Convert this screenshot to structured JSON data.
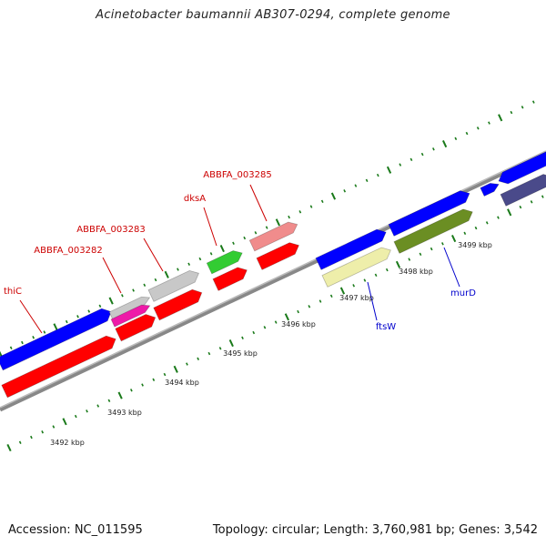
{
  "title": "Acinetobacter baumannii AB307-0294, complete genome",
  "footer": {
    "accession": "Accession: NC_011595",
    "summary": "Topology: circular; Length: 3,760,981 bp; Genes: 3,542"
  },
  "colors": {
    "gene_blue": "#0000ff",
    "gene_red": "#ff0000",
    "gene_gray": "#c8c8c8",
    "gene_magenta": "#ee1aa8",
    "gene_green": "#33cc33",
    "gene_pink": "#f08c8c",
    "gene_yellow": "#eeeeaa",
    "gene_olive": "#6b8e23",
    "gene_navy": "#4a4a8a",
    "tick_green": "#1a7a1a",
    "label_red": "#cc0000",
    "label_blue": "#0000cc"
  },
  "ticks": [
    "3492 kbp",
    "3493 kbp",
    "3494 kbp",
    "3495 kbp",
    "3496 kbp",
    "3497 kbp",
    "3498 kbp",
    "3499 kbp"
  ],
  "gene_labels": [
    {
      "name": "thiC",
      "color": "red"
    },
    {
      "name": "ABBFA_003282",
      "color": "red"
    },
    {
      "name": "ABBFA_003283",
      "color": "red"
    },
    {
      "name": "dksA",
      "color": "red"
    },
    {
      "name": "ABBFA_003285",
      "color": "red"
    },
    {
      "name": "ftsW",
      "color": "blue"
    },
    {
      "name": "murD",
      "color": "blue"
    }
  ]
}
